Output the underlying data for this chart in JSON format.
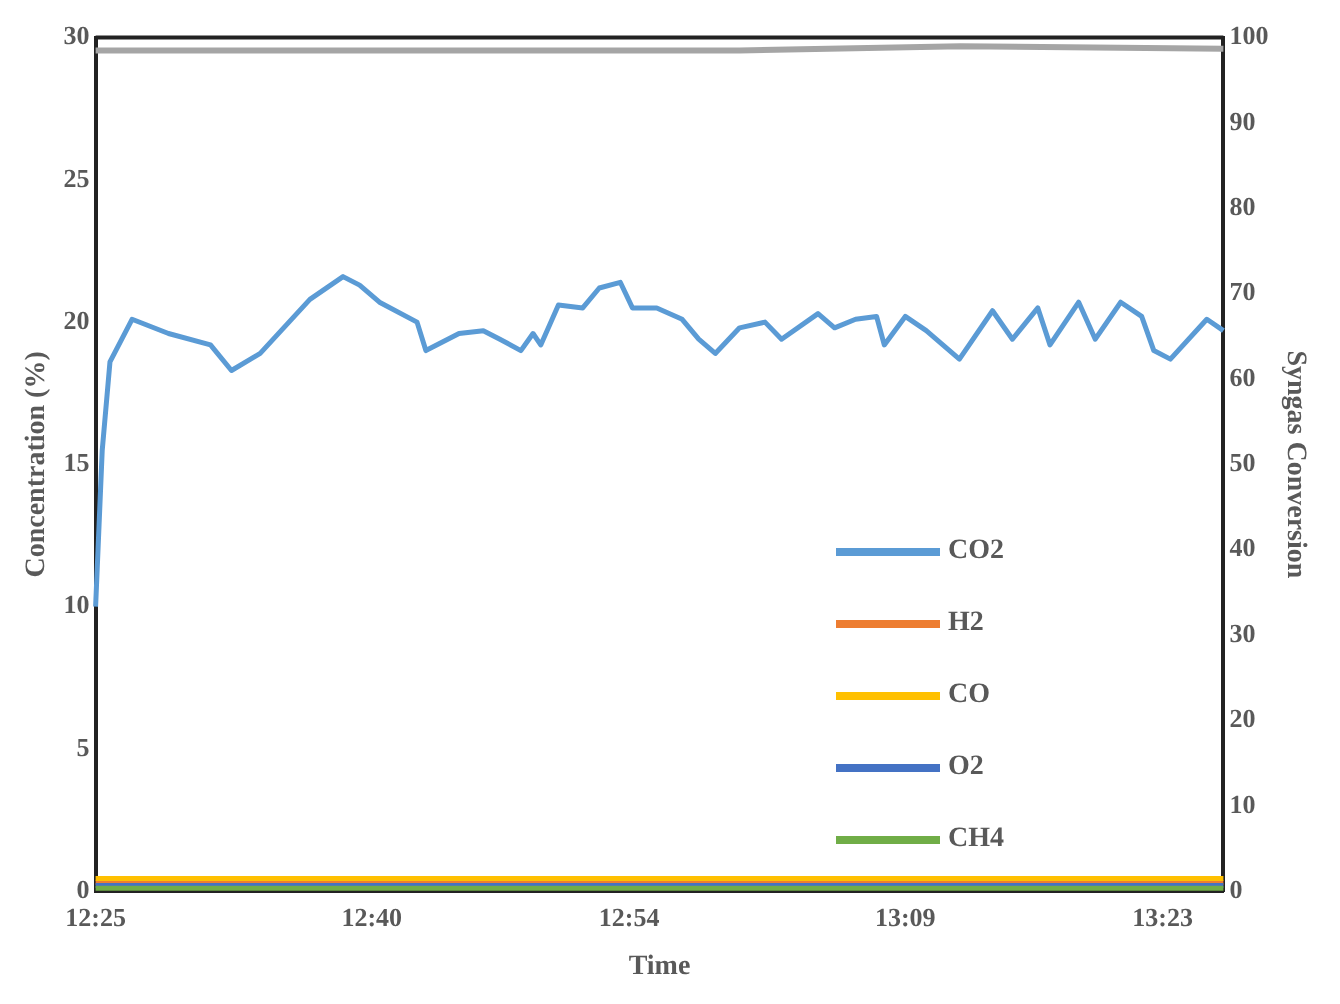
{
  "chart_data": {
    "type": "line",
    "xlabel": "Time",
    "ylabel": "Concentration (%)",
    "y2label": "Syngas Conversion",
    "xlim": [
      12.417,
      13.438
    ],
    "xticks": [
      {
        "value": 12.417,
        "label": "12:25"
      },
      {
        "value": 12.667,
        "label": "12:40"
      },
      {
        "value": 12.9,
        "label": "12:54"
      },
      {
        "value": 13.15,
        "label": "13:09"
      },
      {
        "value": 13.383,
        "label": "13:23"
      }
    ],
    "ylim": [
      0,
      30
    ],
    "yticks": [
      0,
      5,
      10,
      15,
      20,
      25,
      30
    ],
    "y2lim": [
      0,
      100
    ],
    "y2ticks": [
      0,
      10,
      20,
      30,
      40,
      50,
      60,
      70,
      80,
      90,
      100
    ],
    "grid": false,
    "legend": "right",
    "marker": "none",
    "line_style": "solid",
    "series": [
      {
        "name": "CO2",
        "color": "#5b9bd5",
        "x": [
          12.417,
          12.423,
          12.43,
          12.45,
          12.483,
          12.521,
          12.54,
          12.566,
          12.611,
          12.641,
          12.656,
          12.674,
          12.708,
          12.716,
          12.746,
          12.768,
          12.783,
          12.802,
          12.813,
          12.82,
          12.836,
          12.858,
          12.873,
          12.892,
          12.903,
          12.925,
          12.948,
          12.963,
          12.978,
          13.0,
          13.023,
          13.038,
          13.071,
          13.086,
          13.105,
          13.124,
          13.131,
          13.15,
          13.169,
          13.199,
          13.229,
          13.247,
          13.27,
          13.281,
          13.307,
          13.322,
          13.345,
          13.364,
          13.375,
          13.39,
          13.423,
          13.438
        ],
        "values": [
          10,
          15.5,
          18.6,
          20.1,
          19.6,
          19.2,
          18.3,
          18.9,
          20.8,
          21.6,
          21.3,
          20.7,
          20,
          19,
          19.6,
          19.7,
          19.4,
          19,
          19.6,
          19.2,
          20.6,
          20.5,
          21.2,
          21.4,
          20.5,
          20.5,
          20.1,
          19.4,
          18.9,
          19.8,
          20,
          19.4,
          20.3,
          19.8,
          20.1,
          20.2,
          19.2,
          20.2,
          19.7,
          18.7,
          20.4,
          19.4,
          20.5,
          19.2,
          20.7,
          19.4,
          20.7,
          20.2,
          19,
          18.7,
          20.1,
          19.7
        ]
      },
      {
        "name": "H2",
        "color": "#ed7d31",
        "x": [
          12.417,
          13.438
        ],
        "values": [
          0.3,
          0.3
        ]
      },
      {
        "name": "CO",
        "color": "#ffc000",
        "x": [
          12.417,
          13.438
        ],
        "values": [
          0.45,
          0.45
        ]
      },
      {
        "name": "O2",
        "color": "#4472c4",
        "x": [
          12.417,
          13.438
        ],
        "values": [
          0.2,
          0.2
        ]
      },
      {
        "name": "CH4",
        "color": "#70ad47",
        "x": [
          12.417,
          13.438
        ],
        "values": [
          0.1,
          0.1
        ]
      },
      {
        "color": "#a5a5a5",
        "axis": "y2",
        "x": [
          12.417,
          13.0,
          13.2,
          13.438
        ],
        "values": [
          98.5,
          98.5,
          99,
          98.7
        ]
      }
    ]
  }
}
